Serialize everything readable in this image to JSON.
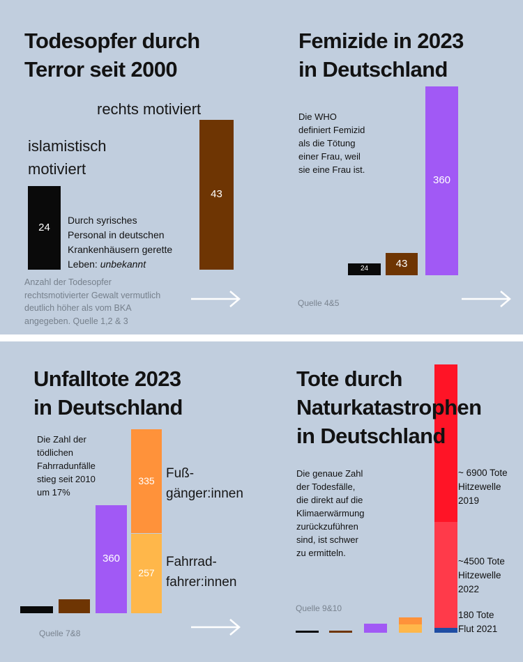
{
  "chart_data": [
    {
      "type": "bar",
      "title": "Todesopfer durch Terror seit 2000",
      "categories": [
        "islamistisch motiviert",
        "rechts motiviert"
      ],
      "values": [
        24,
        43
      ],
      "colors": [
        "#0a0a0a",
        "#6e3503"
      ],
      "category_label_lines": [
        [
          "islamistisch",
          "motiviert"
        ],
        [
          "rechts motiviert"
        ]
      ],
      "annotation_lines": [
        "Durch syrisches",
        "Personal in deutschen",
        "Krankenhäusern gerette",
        "Leben: "
      ],
      "annotation_italic": "unbekannt",
      "footnote_lines": [
        "Anzahl der Todesopfer",
        "rechtsmotivierter Gewalt vermutlich",
        "deutlich höher als vom BKA",
        "angegeben. Quelle 1,2 & 3"
      ],
      "arrow": "right-arrow"
    },
    {
      "type": "bar",
      "title": "Femizide in  2023 in Deutschland",
      "categories": [
        "",
        "",
        ""
      ],
      "values": [
        24,
        43,
        360
      ],
      "colors": [
        "#0a0a0a",
        "#6e3503",
        "#a159f5"
      ],
      "annotation_lines": [
        "Die WHO",
        "definiert Femizid",
        "als die Tötung",
        "einer Frau, weil",
        "sie eine Frau ist."
      ],
      "source": "Quelle 4&5",
      "arrow": "right-arrow"
    },
    {
      "type": "bar",
      "title": "Unfalltote 2023 in Deutschland",
      "categories": [
        "",
        "",
        "",
        "Fahrradfahrer:innen / Fußgänger:innen"
      ],
      "values": [
        24,
        43,
        360,
        592
      ],
      "colors": [
        "#0a0a0a",
        "#6e3503",
        "#a159f5",
        "#ff9a3c"
      ],
      "stacked": [
        {
          "name": "Fahrradfahrer:innen",
          "value": 257,
          "color": "#ffb74a",
          "label_lines": [
            "Fahrrad-",
            "fahrer:innen"
          ]
        },
        {
          "name": "Fußgänger:innen",
          "value": 335,
          "color": "#ff923a",
          "label_lines": [
            "Fuß-",
            "gänger:innen"
          ]
        }
      ],
      "annotation_lines": [
        "Die Zahl der",
        "tödlichen",
        "Fahrradunfälle",
        "stieg seit 2010",
        "um 17%"
      ],
      "source": "Quelle 7&8",
      "arrow": "right-arrow"
    },
    {
      "type": "bar",
      "title": "Tote durch Naturkatastrophen in Deutschland",
      "categories": [
        "",
        "",
        "",
        "",
        ""
      ],
      "values": [
        24,
        43,
        360,
        592,
        11580
      ],
      "colors": [
        "#0a0a0a",
        "#6e3503",
        "#a159f5",
        "#ff9a3c",
        "#ff1f2d"
      ],
      "stacked": [
        {
          "name": "Flut 2021",
          "value": 180,
          "color": "#1f4da3",
          "label_lines": [
            "180 Tote",
            "Flut 2021"
          ]
        },
        {
          "name": "Hitzewelle 2022",
          "value": 4500,
          "color": "#ff3a4a",
          "label_lines": [
            "~4500 Tote",
            "Hitzewelle",
            "2022"
          ]
        },
        {
          "name": "Hitzewelle 2019",
          "value": 6900,
          "color": "#ff1426",
          "label_lines": [
            "~ 6900 Tote",
            "Hitzewelle",
            "2019"
          ]
        }
      ],
      "annotation_lines": [
        "Die genaue Zahl",
        "der Todesfälle,",
        "die direkt auf die",
        "Klimaerwärmung",
        "zurückzuführen",
        "sind, ist schwer",
        "zu ermitteln."
      ],
      "source": "Quelle 9&10"
    }
  ],
  "titles": {
    "q1": [
      "Todesopfer durch",
      "Terror seit 2000"
    ],
    "q2": [
      "Femizide in  2023",
      "in Deutschland"
    ],
    "q3": [
      "Unfalltote 2023",
      "in Deutschland"
    ],
    "q4": [
      "Tote durch",
      "Naturkatastrophen",
      "in Deutschland"
    ]
  }
}
